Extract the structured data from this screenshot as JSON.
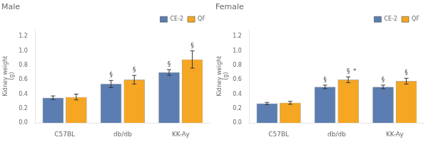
{
  "chart_data": [
    {
      "type": "bar",
      "title": "Male",
      "categories": [
        "C57BL",
        "db/db",
        "KK-Ay"
      ],
      "series": [
        {
          "name": "CE-2",
          "color": "#5B7DB1",
          "values": [
            0.35,
            0.54,
            0.7
          ],
          "errors": [
            0.025,
            0.05,
            0.04
          ]
        },
        {
          "name": "QF",
          "color": "#F5A623",
          "values": [
            0.36,
            0.6,
            0.88
          ],
          "errors": [
            0.04,
            0.06,
            0.12
          ]
        }
      ],
      "annotations": [
        {
          "text": "§",
          "category": "db/db",
          "series": "CE-2"
        },
        {
          "text": "§",
          "category": "KK-Ay",
          "series": "CE-2"
        },
        {
          "text": "§",
          "category": "db/db",
          "series": "QF"
        },
        {
          "text": "§",
          "category": "KK-Ay",
          "series": "QF"
        }
      ],
      "y_label": "Kidney weight\n(g)",
      "ylim": [
        0,
        1.3
      ],
      "yticks": [
        {
          "value": 0,
          "label": "0.0"
        },
        0.2,
        0.4,
        0.6,
        0.8,
        {
          "value": 1.0,
          "label": "1.0"
        },
        1.2
      ],
      "grid": false,
      "legend": "upper right"
    },
    {
      "type": "bar",
      "title": "Female",
      "categories": [
        "C57BL",
        "db/db",
        "KK-Ay"
      ],
      "series": [
        {
          "name": "CE-2",
          "color": "#5B7DB1",
          "values": [
            0.27,
            0.5,
            0.5
          ],
          "errors": [
            0.015,
            0.025,
            0.025
          ]
        },
        {
          "name": "QF",
          "color": "#F5A623",
          "values": [
            0.28,
            0.6,
            0.58
          ],
          "errors": [
            0.02,
            0.04,
            0.04
          ]
        }
      ],
      "annotations": [
        {
          "text": "§",
          "category": "db/db",
          "series": "CE-2"
        },
        {
          "text": "§",
          "category": "KK-Ay",
          "series": "CE-2"
        },
        {
          "text": "§",
          "category": "db/db",
          "series": "QF"
        },
        {
          "text": "§",
          "category": "KK-Ay",
          "series": "QF"
        },
        {
          "text": "*",
          "category": "db/db",
          "series": "QF"
        }
      ],
      "y_label": "Kidney weight\n(g)",
      "ylim": [
        0,
        1.3
      ],
      "yticks": [
        {
          "value": 0,
          "label": "0.0"
        },
        0.2,
        0.4,
        0.6,
        0.8,
        {
          "value": 1.0,
          "label": "1.0"
        },
        1.2
      ],
      "grid": false,
      "legend": "upper right"
    }
  ]
}
